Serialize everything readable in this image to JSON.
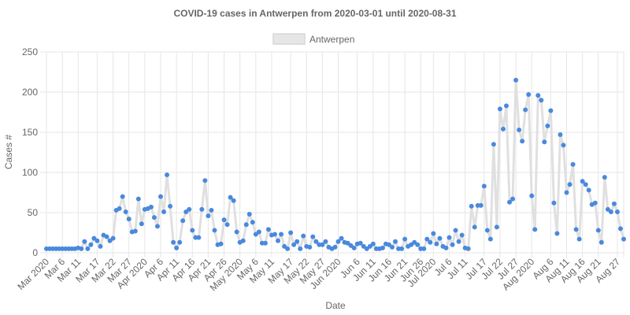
{
  "chart_data": {
    "type": "line",
    "title": "COVID-19 cases in Antwerpen from 2020-03-01 until 2020-08-31",
    "xlabel": "Date",
    "ylabel": "Cases #",
    "ylim": [
      0,
      250
    ],
    "yticks": [
      0,
      50,
      100,
      150,
      200,
      250
    ],
    "grid": true,
    "legend_position": "top",
    "x_tick_labels": [
      "Mar 2020",
      "Mar 6",
      "Mar 11",
      "Mar 17",
      "Mar 22",
      "Mar 27",
      "Apr 2020",
      "Apr 6",
      "Apr 11",
      "Apr 16",
      "Apr 21",
      "Apr 26",
      "May 2020",
      "May 6",
      "May 11",
      "May 17",
      "May 22",
      "May 27",
      "Jun 2020",
      "Jun 6",
      "Jun 11",
      "Jun 16",
      "Jun 21",
      "Jun 26",
      "Jul 2020",
      "Jul 6",
      "Jul 11",
      "Jul 17",
      "Jul 22",
      "Jul 27",
      "Aug 2020",
      "Aug 6",
      "Aug 11",
      "Aug 16",
      "Aug 21",
      "Aug 27"
    ],
    "x_tick_days": [
      0,
      5,
      10,
      16,
      21,
      26,
      31,
      36,
      41,
      46,
      51,
      56,
      61,
      66,
      71,
      77,
      82,
      87,
      92,
      98,
      103,
      108,
      113,
      118,
      122,
      127,
      132,
      138,
      143,
      148,
      153,
      159,
      164,
      169,
      174,
      180
    ],
    "series": [
      {
        "name": "Antwerpen",
        "point_color": "#4a89dc",
        "line_color": "#e0e0e0",
        "start_date": "2020-03-01",
        "values": [
          5,
          5,
          5,
          5,
          5,
          5,
          5,
          5,
          5,
          5,
          6,
          5,
          14,
          5,
          10,
          18,
          15,
          8,
          22,
          20,
          15,
          18,
          53,
          55,
          70,
          51,
          42,
          26,
          27,
          67,
          36,
          54,
          55,
          57,
          44,
          33,
          70,
          51,
          97,
          58,
          13,
          6,
          13,
          40,
          51,
          54,
          28,
          19,
          19,
          54,
          90,
          46,
          53,
          28,
          10,
          11,
          41,
          35,
          69,
          65,
          26,
          13,
          15,
          35,
          48,
          38,
          23,
          26,
          12,
          12,
          29,
          22,
          23,
          15,
          23,
          8,
          5,
          25,
          10,
          14,
          5,
          21,
          8,
          7,
          20,
          14,
          10,
          10,
          14,
          7,
          5,
          7,
          14,
          18,
          13,
          12,
          9,
          6,
          11,
          12,
          8,
          5,
          8,
          11,
          5,
          5,
          6,
          11,
          10,
          7,
          14,
          5,
          5,
          17,
          8,
          10,
          13,
          10,
          5,
          5,
          17,
          13,
          24,
          11,
          18,
          8,
          6,
          19,
          10,
          28,
          14,
          22,
          6,
          5,
          58,
          32,
          59,
          59,
          83,
          28,
          17,
          135,
          32,
          179,
          154,
          183,
          63,
          67,
          215,
          153,
          139,
          178,
          197,
          71,
          29,
          196,
          190,
          138,
          158,
          177,
          62,
          24,
          147,
          134,
          75,
          85,
          110,
          29,
          17,
          89,
          85,
          78,
          60,
          62,
          28,
          13,
          94,
          54,
          51,
          61,
          51,
          30,
          17
        ]
      }
    ]
  }
}
